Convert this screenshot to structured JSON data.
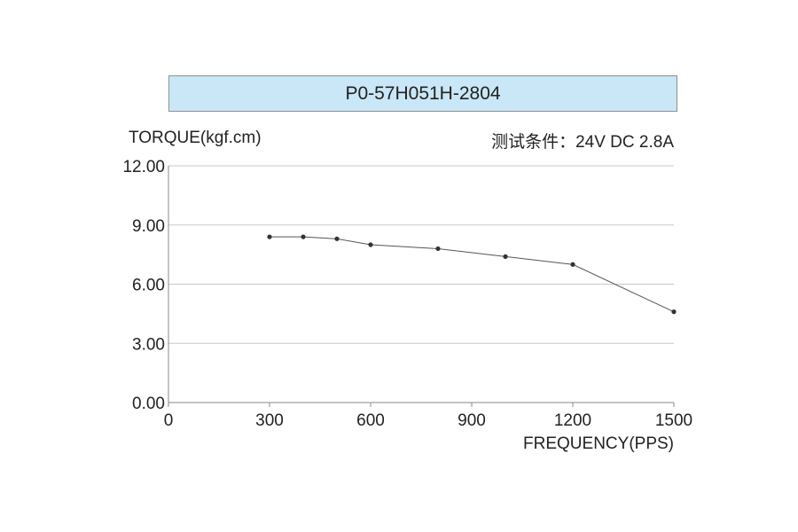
{
  "chart_data": {
    "type": "line",
    "title": "P0-57H051H-2804",
    "ylabel": "TORQUE(kgf.cm)",
    "xlabel": "FREQUENCY(PPS)",
    "annotation": "测试条件：24V DC  2.8A",
    "xlim": [
      0,
      1500
    ],
    "ylim": [
      0,
      12
    ],
    "xticks": [
      0,
      300,
      600,
      900,
      1200,
      1500
    ],
    "xtick_labels": [
      "0",
      "300",
      "600",
      "900",
      "1200",
      "1500"
    ],
    "yticks": [
      0,
      3,
      6,
      9,
      12
    ],
    "ytick_labels": [
      "0.00",
      "3.00",
      "6.00",
      "9.00",
      "12.00"
    ],
    "grid": "horizontal",
    "series": [
      {
        "x": [
          300,
          400,
          500,
          600,
          800,
          1000,
          1200,
          1500
        ],
        "y": [
          8.4,
          8.4,
          8.3,
          8.0,
          7.8,
          7.4,
          7.0,
          4.6
        ]
      }
    ],
    "colors": {
      "line": "#555555",
      "marker": "#333333",
      "grid": "#c8c8c8",
      "axis": "#888888"
    }
  }
}
